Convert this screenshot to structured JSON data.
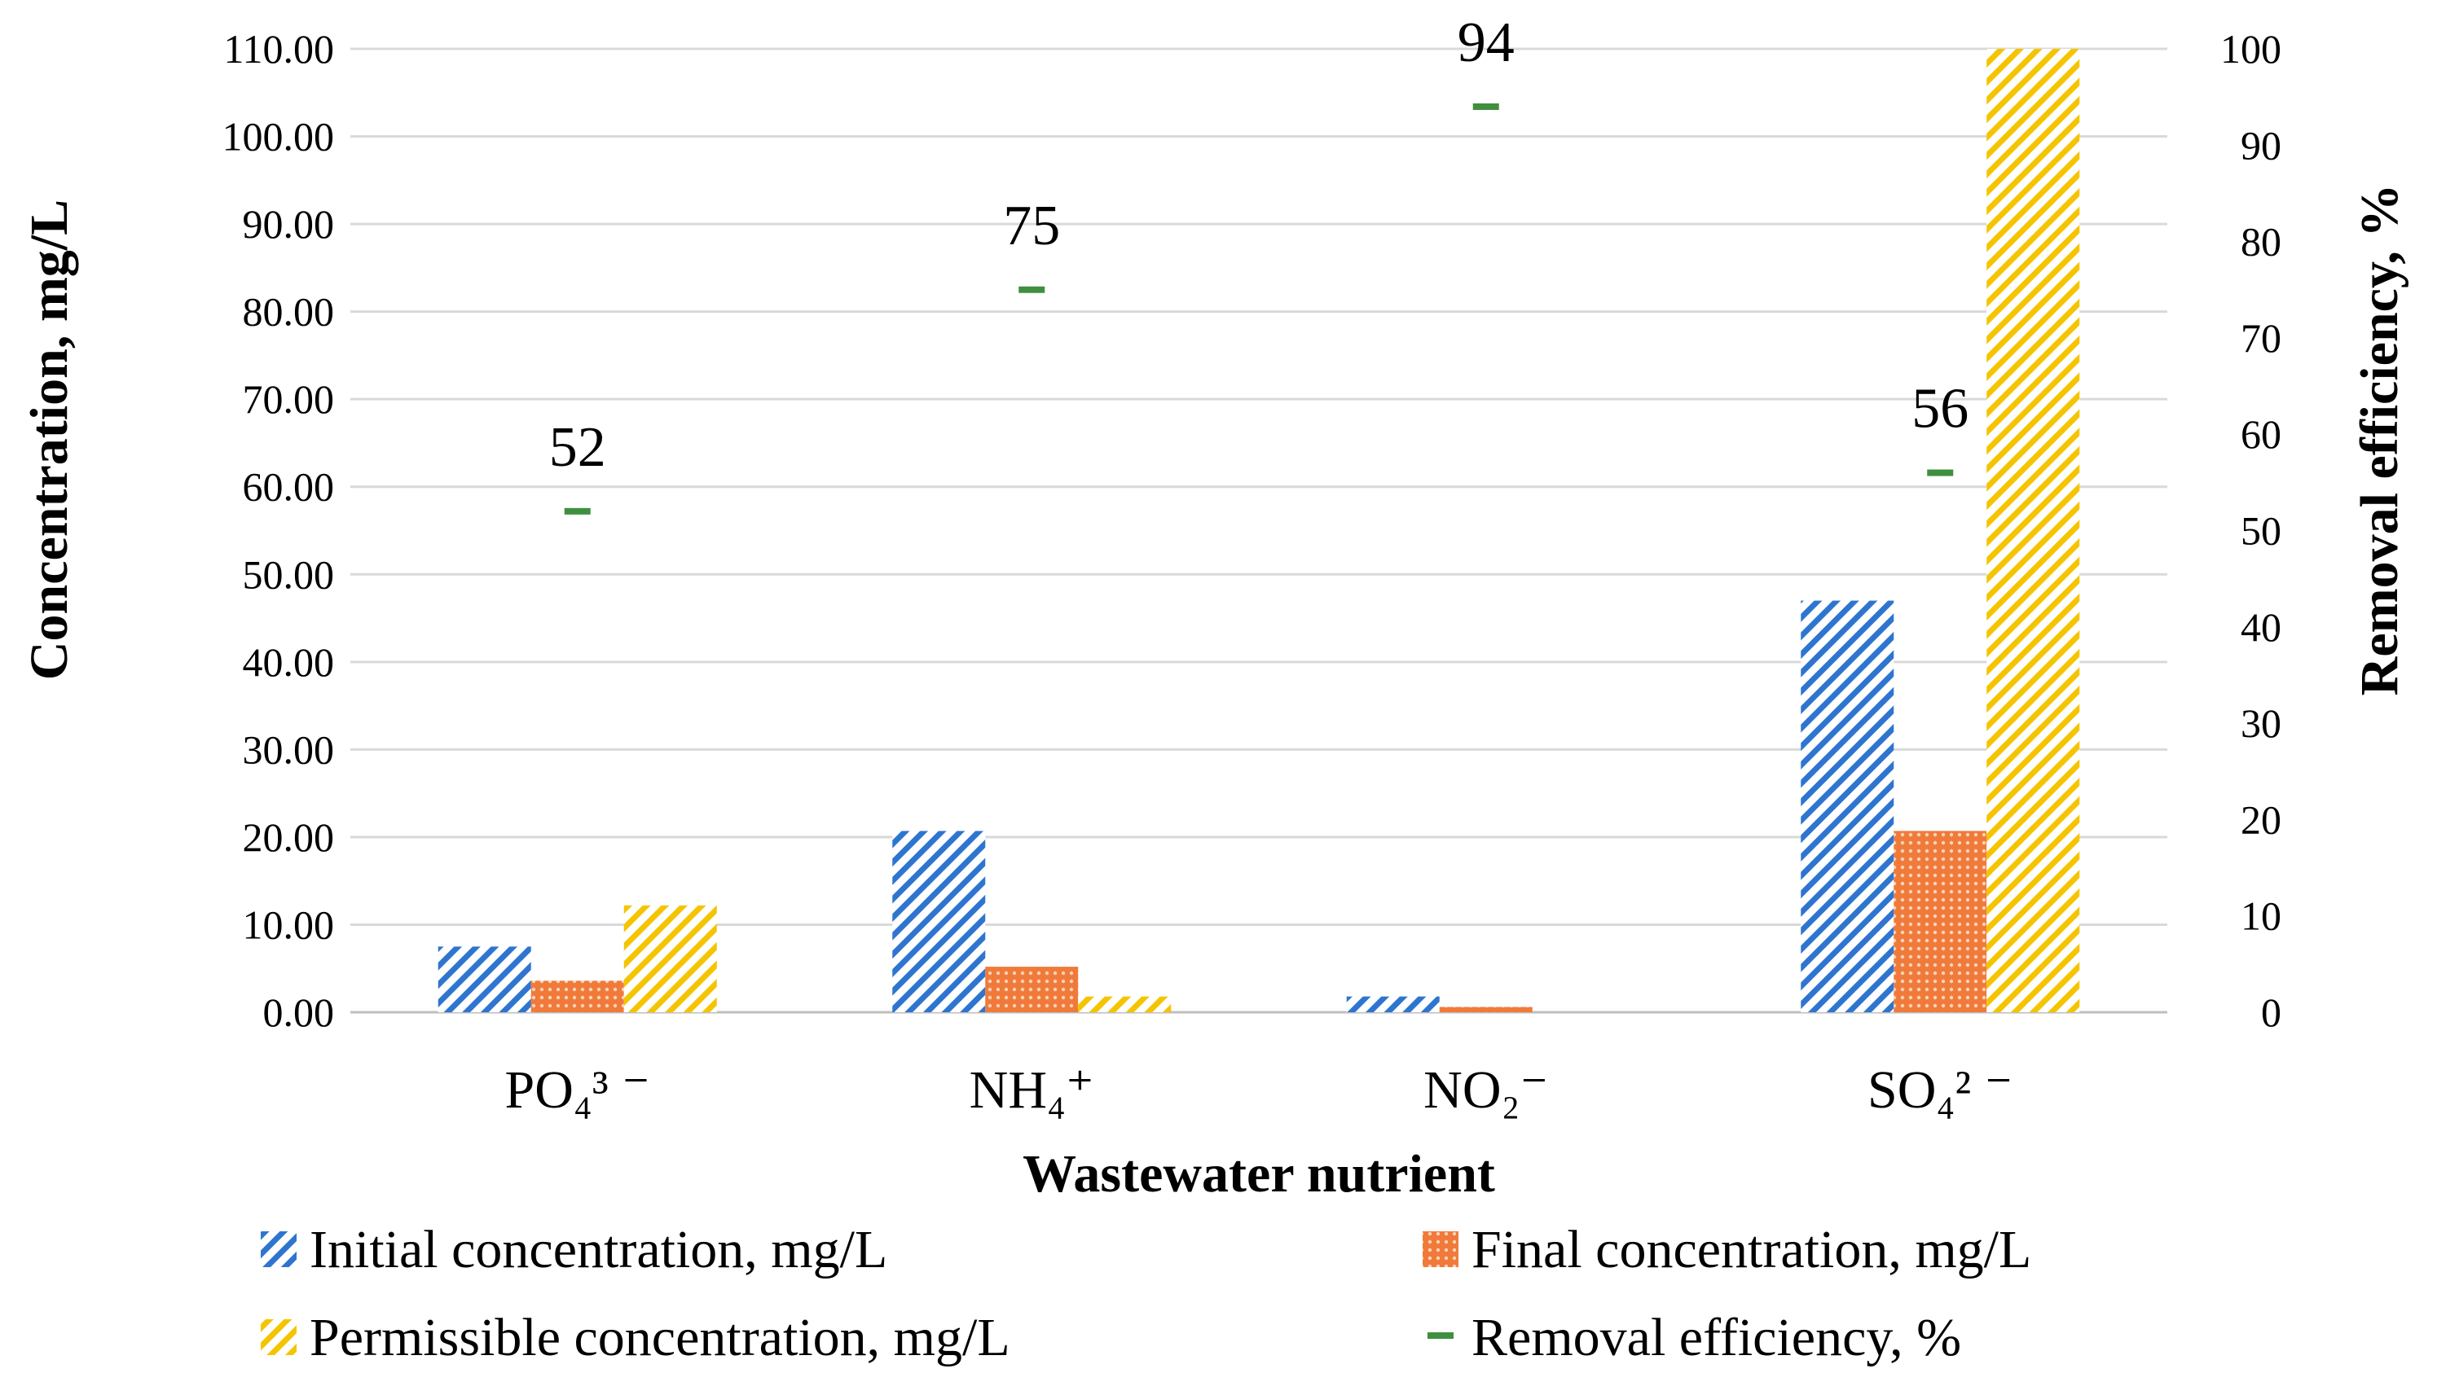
{
  "chart_data": {
    "type": "bar",
    "categories": [
      "PO₄³ ⁻",
      "NH₄⁺",
      "NO₂⁻",
      "SO₄² ⁻"
    ],
    "series": [
      {
        "name": "Initial concentration, mg/L",
        "axis": "left",
        "values": [
          7.5,
          20.7,
          1.8,
          47.0
        ],
        "color": "#2E75D0",
        "pattern": "diagonal-hatch"
      },
      {
        "name": "Final concentration, mg/L",
        "axis": "left",
        "values": [
          3.6,
          5.2,
          0.6,
          20.7
        ],
        "color": "#F07A3A",
        "pattern": "dots"
      },
      {
        "name": "Permissible concentration, mg/L",
        "axis": "left",
        "values": [
          12.2,
          1.8,
          0,
          110
        ],
        "color": "#F5C400",
        "pattern": "diagonal-hatch"
      },
      {
        "name": "Removal efficiency, %",
        "axis": "right",
        "type": "marker",
        "values": [
          52,
          75,
          94,
          56
        ],
        "color": "#3F8F3F"
      }
    ],
    "data_labels": [
      "52",
      "75",
      "94",
      "56"
    ],
    "xlabel": "Wastewater nutrient",
    "ylabel": "Concentration, mg/L",
    "y2label": "Removal efficiency, %",
    "ylim": [
      0,
      110
    ],
    "y_ticks": [
      "0.00",
      "10.00",
      "20.00",
      "30.00",
      "40.00",
      "50.00",
      "60.00",
      "70.00",
      "80.00",
      "90.00",
      "100.00",
      "110.00"
    ],
    "y2lim": [
      0,
      100
    ],
    "y2_ticks": [
      "0",
      "10",
      "20",
      "30",
      "40",
      "50",
      "60",
      "70",
      "80",
      "90",
      "100"
    ],
    "grid": true,
    "legend_position": "bottom"
  }
}
